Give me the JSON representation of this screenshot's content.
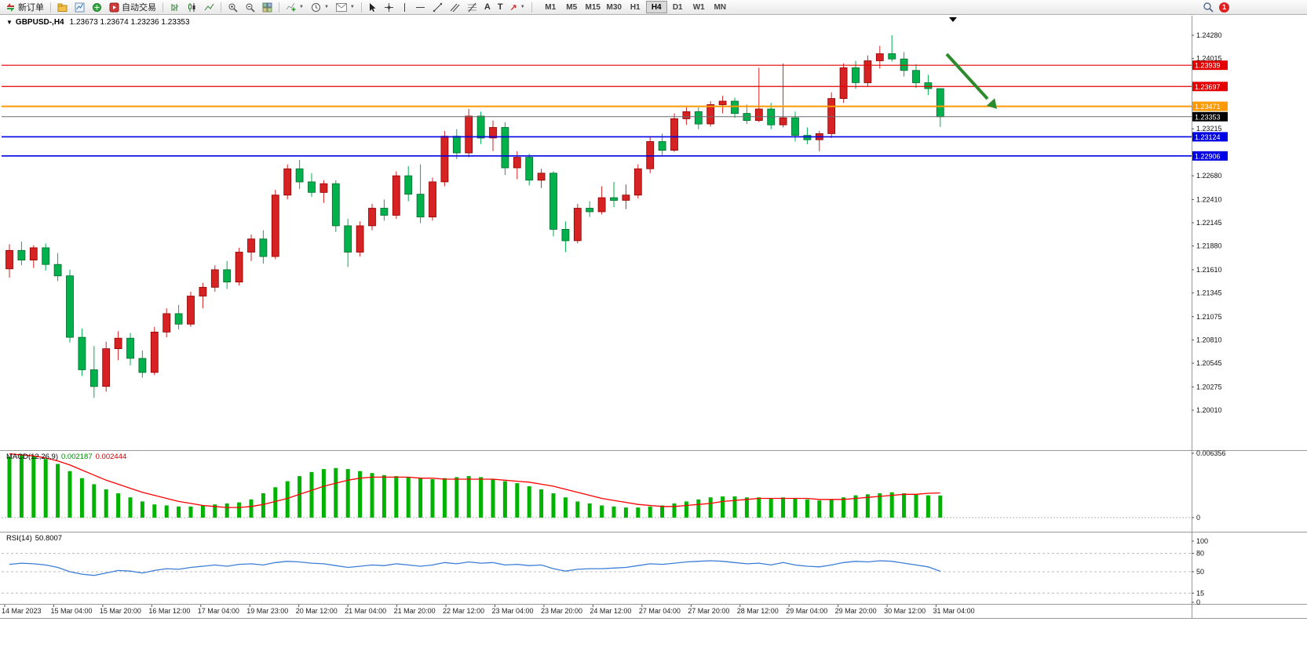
{
  "toolbar": {
    "new_order_label": "新订单",
    "autotrading_label": "自动交易",
    "timeframes": [
      "M1",
      "M5",
      "M15",
      "M30",
      "H1",
      "H4",
      "D1",
      "W1",
      "MN"
    ],
    "active_timeframe": "H4",
    "notification_count": "1"
  },
  "chart_header": {
    "collapse_arrow": "▼",
    "symbol": "GBPUSD-,H4",
    "ohlc": "1.23673 1.23674 1.23236 1.23353"
  },
  "indicators": {
    "macd": {
      "name": "MACD(12,26,9)",
      "value_main": "0.002187",
      "value_signal": "0.002444"
    },
    "rsi": {
      "name": "RSI(14)",
      "value": "50.8007"
    }
  },
  "chart_data": {
    "type": "candlestick",
    "symbol": "GBPUSD-",
    "timeframe": "H4",
    "current_ohlc": {
      "open": 1.23673,
      "high": 1.23674,
      "low": 1.23236,
      "close": 1.23353
    },
    "up_color": "#d62222",
    "up_border": "#8f0000",
    "down_color": "#00b14c",
    "down_border": "#006b2d",
    "candles": [
      [
        1.2162,
        1.219,
        1.2152,
        1.2183
      ],
      [
        1.2183,
        1.2193,
        1.2166,
        1.2172
      ],
      [
        1.2172,
        1.2189,
        1.2163,
        1.2186
      ],
      [
        1.2186,
        1.2191,
        1.216,
        1.2167
      ],
      [
        1.2167,
        1.218,
        1.2148,
        1.2154
      ],
      [
        1.2154,
        1.2161,
        1.2078,
        1.2084
      ],
      [
        1.2084,
        1.2094,
        1.204,
        1.2047
      ],
      [
        1.2047,
        1.2074,
        1.2015,
        1.2028
      ],
      [
        1.2028,
        1.2079,
        1.2022,
        1.2071
      ],
      [
        1.2071,
        1.2091,
        1.2058,
        1.2083
      ],
      [
        1.2083,
        1.2089,
        1.2052,
        1.206
      ],
      [
        1.206,
        1.2069,
        1.2038,
        1.2044
      ],
      [
        1.2044,
        1.2096,
        1.2041,
        1.209
      ],
      [
        1.209,
        1.2117,
        1.2084,
        1.2111
      ],
      [
        1.2111,
        1.2121,
        1.2093,
        1.2099
      ],
      [
        1.2099,
        1.2136,
        1.2096,
        1.2131
      ],
      [
        1.2131,
        1.2146,
        1.2117,
        1.2141
      ],
      [
        1.2141,
        1.2166,
        1.2136,
        1.2161
      ],
      [
        1.2161,
        1.2171,
        1.2139,
        1.2147
      ],
      [
        1.2147,
        1.2186,
        1.2143,
        1.2181
      ],
      [
        1.2181,
        1.2201,
        1.2171,
        1.2196
      ],
      [
        1.2196,
        1.2206,
        1.2168,
        1.2176
      ],
      [
        1.2176,
        1.2252,
        1.2173,
        1.2246
      ],
      [
        1.2246,
        1.2281,
        1.2241,
        1.2276
      ],
      [
        1.2276,
        1.2286,
        1.2253,
        1.2261
      ],
      [
        1.2261,
        1.2271,
        1.2244,
        1.2249
      ],
      [
        1.2249,
        1.2263,
        1.2237,
        1.2259
      ],
      [
        1.2259,
        1.2263,
        1.2204,
        1.2211
      ],
      [
        1.2211,
        1.2219,
        1.2164,
        1.2181
      ],
      [
        1.2181,
        1.2216,
        1.2176,
        1.2211
      ],
      [
        1.2211,
        1.2236,
        1.2206,
        1.2231
      ],
      [
        1.2231,
        1.2241,
        1.2217,
        1.2223
      ],
      [
        1.2223,
        1.2273,
        1.2219,
        1.2268
      ],
      [
        1.2268,
        1.2279,
        1.2239,
        1.2247
      ],
      [
        1.2247,
        1.2281,
        1.2214,
        1.2221
      ],
      [
        1.2221,
        1.2266,
        1.2217,
        1.2261
      ],
      [
        1.2261,
        1.2319,
        1.2256,
        1.2313
      ],
      [
        1.2313,
        1.2321,
        1.2287,
        1.2294
      ],
      [
        1.2294,
        1.2344,
        1.2289,
        1.2336
      ],
      [
        1.2336,
        1.2341,
        1.2304,
        1.2311
      ],
      [
        1.2311,
        1.2331,
        1.2296,
        1.2323
      ],
      [
        1.2323,
        1.2329,
        1.2269,
        1.2277
      ],
      [
        1.2277,
        1.2296,
        1.2264,
        1.2289
      ],
      [
        1.2289,
        1.2293,
        1.2257,
        1.2263
      ],
      [
        1.2263,
        1.2276,
        1.2254,
        1.2271
      ],
      [
        1.2271,
        1.2273,
        1.2199,
        1.2207
      ],
      [
        1.2207,
        1.2216,
        1.2181,
        1.2194
      ],
      [
        1.2194,
        1.2236,
        1.2191,
        1.2231
      ],
      [
        1.2231,
        1.2239,
        1.2221,
        1.2227
      ],
      [
        1.2227,
        1.2256,
        1.2224,
        1.2243
      ],
      [
        1.2243,
        1.2261,
        1.2232,
        1.224
      ],
      [
        1.224,
        1.2258,
        1.223,
        1.2246
      ],
      [
        1.2246,
        1.2281,
        1.2242,
        1.2276
      ],
      [
        1.2276,
        1.2313,
        1.2271,
        1.2307
      ],
      [
        1.2307,
        1.2316,
        1.2291,
        1.2297
      ],
      [
        1.2297,
        1.2339,
        1.2295,
        1.2333
      ],
      [
        1.2333,
        1.2346,
        1.2326,
        1.2341
      ],
      [
        1.2341,
        1.2346,
        1.2321,
        1.2327
      ],
      [
        1.2327,
        1.2353,
        1.2324,
        1.2349
      ],
      [
        1.2349,
        1.2359,
        1.2339,
        1.2353
      ],
      [
        1.2353,
        1.2357,
        1.2334,
        1.2339
      ],
      [
        1.2339,
        1.2349,
        1.2327,
        1.2331
      ],
      [
        1.2331,
        1.2391,
        1.2329,
        1.2344
      ],
      [
        1.2344,
        1.2351,
        1.2321,
        1.2326
      ],
      [
        1.2326,
        1.2396,
        1.2323,
        1.2334
      ],
      [
        1.2334,
        1.2341,
        1.2307,
        1.2314
      ],
      [
        1.2314,
        1.2323,
        1.2304,
        1.2309
      ],
      [
        1.2309,
        1.2319,
        1.2296,
        1.2316
      ],
      [
        1.2316,
        1.2363,
        1.2311,
        1.2356
      ],
      [
        1.2356,
        1.2396,
        1.2351,
        1.2391
      ],
      [
        1.2391,
        1.2399,
        1.2367,
        1.2374
      ],
      [
        1.2374,
        1.2405,
        1.2369,
        1.2399
      ],
      [
        1.2399,
        1.2416,
        1.239,
        1.2407
      ],
      [
        1.2407,
        1.2428,
        1.2398,
        1.2401
      ],
      [
        1.2401,
        1.2409,
        1.2381,
        1.2388
      ],
      [
        1.2388,
        1.2395,
        1.2368,
        1.2374
      ],
      [
        1.2374,
        1.2383,
        1.236,
        1.23673
      ],
      [
        1.23673,
        1.23674,
        1.23236,
        1.23353
      ]
    ],
    "time_labels": [
      "14 Mar 2023",
      "15 Mar 04:00",
      "15 Mar 20:00",
      "16 Mar 12:00",
      "17 Mar 04:00",
      "19 Mar 23:00",
      "20 Mar 12:00",
      "21 Mar 04:00",
      "21 Mar 20:00",
      "22 Mar 12:00",
      "23 Mar 04:00",
      "23 Mar 20:00",
      "24 Mar 12:00",
      "27 Mar 04:00",
      "27 Mar 20:00",
      "28 Mar 12:00",
      "29 Mar 04:00",
      "29 Mar 20:00",
      "30 Mar 12:00",
      "31 Mar 04:00"
    ],
    "axis_ticks": [
      "1.24280",
      "1.24015",
      "1.23215",
      "1.22680",
      "1.22410",
      "1.22145",
      "1.21880",
      "1.21610",
      "1.21345",
      "1.21075",
      "1.20810",
      "1.20545",
      "1.20275",
      "1.20010"
    ],
    "price_lines": [
      {
        "price": 1.23939,
        "label": "1.23939",
        "color": "#e40000",
        "width": 1.2,
        "kind": "resistance"
      },
      {
        "price": 1.23697,
        "label": "1.23697",
        "color": "#e40000",
        "width": 1.2,
        "kind": "resistance"
      },
      {
        "price": 1.23471,
        "label": "1.23471",
        "color": "#ff9900",
        "width": 2,
        "kind": "pivot"
      },
      {
        "price": 1.23124,
        "label": "1.23124",
        "color": "#0000e6",
        "width": 1.6,
        "kind": "support"
      },
      {
        "price": 1.22906,
        "label": "1.22906",
        "color": "#0000e6",
        "width": 1.6,
        "kind": "support"
      }
    ],
    "current_price_line": {
      "price": 1.23353,
      "label": "1.23353",
      "line_color": "#6a6a6a",
      "badge_color": "#000000"
    },
    "annotation_arrow": {
      "color": "#2d8a2d",
      "direction": "down-right"
    },
    "macd": {
      "scale_max_label": "0.006356",
      "zero_label": "0",
      "hist_color": "#00b300",
      "signal_color": "#ff0000",
      "histogram": [
        0.006,
        0.0062,
        0.0061,
        0.0058,
        0.0053,
        0.0046,
        0.0039,
        0.0033,
        0.0028,
        0.0024,
        0.002,
        0.0016,
        0.0013,
        0.0012,
        0.0011,
        0.0011,
        0.0012,
        0.0013,
        0.0014,
        0.0015,
        0.0018,
        0.0024,
        0.003,
        0.0036,
        0.0041,
        0.0045,
        0.0048,
        0.0049,
        0.0048,
        0.0046,
        0.0044,
        0.0042,
        0.0041,
        0.004,
        0.0039,
        0.0038,
        0.0039,
        0.004,
        0.0041,
        0.004,
        0.0038,
        0.0036,
        0.0034,
        0.0031,
        0.0028,
        0.0024,
        0.002,
        0.0016,
        0.0014,
        0.0012,
        0.0011,
        0.001,
        0.001,
        0.0011,
        0.0012,
        0.0014,
        0.0016,
        0.0018,
        0.002,
        0.0021,
        0.0021,
        0.002,
        0.002,
        0.0019,
        0.002,
        0.0019,
        0.0018,
        0.0017,
        0.0018,
        0.002,
        0.0022,
        0.0023,
        0.0024,
        0.0025,
        0.0024,
        0.0023,
        0.0022,
        0.002187
      ],
      "signal": [
        0.0063,
        0.0062,
        0.0061,
        0.0059,
        0.0056,
        0.0052,
        0.0047,
        0.0042,
        0.0037,
        0.0033,
        0.0029,
        0.0025,
        0.0022,
        0.0019,
        0.0016,
        0.0014,
        0.0012,
        0.0011,
        0.001,
        0.001,
        0.0011,
        0.0013,
        0.0016,
        0.0019,
        0.0023,
        0.0027,
        0.0031,
        0.0034,
        0.0037,
        0.0039,
        0.004,
        0.004,
        0.004,
        0.004,
        0.0039,
        0.0039,
        0.0038,
        0.0038,
        0.0038,
        0.0038,
        0.0038,
        0.0037,
        0.0036,
        0.0035,
        0.0033,
        0.0031,
        0.0028,
        0.0025,
        0.0022,
        0.0019,
        0.0017,
        0.0015,
        0.0013,
        0.0012,
        0.0011,
        0.0011,
        0.0012,
        0.0013,
        0.0014,
        0.0016,
        0.0017,
        0.0018,
        0.0019,
        0.0019,
        0.0019,
        0.0019,
        0.0019,
        0.0018,
        0.0018,
        0.0018,
        0.0019,
        0.002,
        0.0021,
        0.0022,
        0.0023,
        0.0023,
        0.0024,
        0.002444
      ]
    },
    "rsi": {
      "line_color": "#3b7dd8",
      "levels": [
        100,
        80,
        50,
        15,
        0
      ],
      "values": [
        62,
        64,
        63,
        61,
        57,
        50,
        46,
        44,
        48,
        52,
        51,
        48,
        52,
        55,
        54,
        57,
        59,
        61,
        59,
        62,
        63,
        61,
        65,
        67,
        66,
        64,
        63,
        60,
        57,
        59,
        61,
        60,
        63,
        61,
        59,
        61,
        65,
        63,
        66,
        64,
        65,
        61,
        62,
        60,
        61,
        55,
        51,
        54,
        55,
        55,
        56,
        57,
        60,
        63,
        62,
        64,
        66,
        67,
        68,
        67,
        65,
        63,
        64,
        61,
        65,
        61,
        59,
        58,
        61,
        65,
        67,
        66,
        68,
        67,
        64,
        61,
        58,
        50.8
      ]
    }
  }
}
